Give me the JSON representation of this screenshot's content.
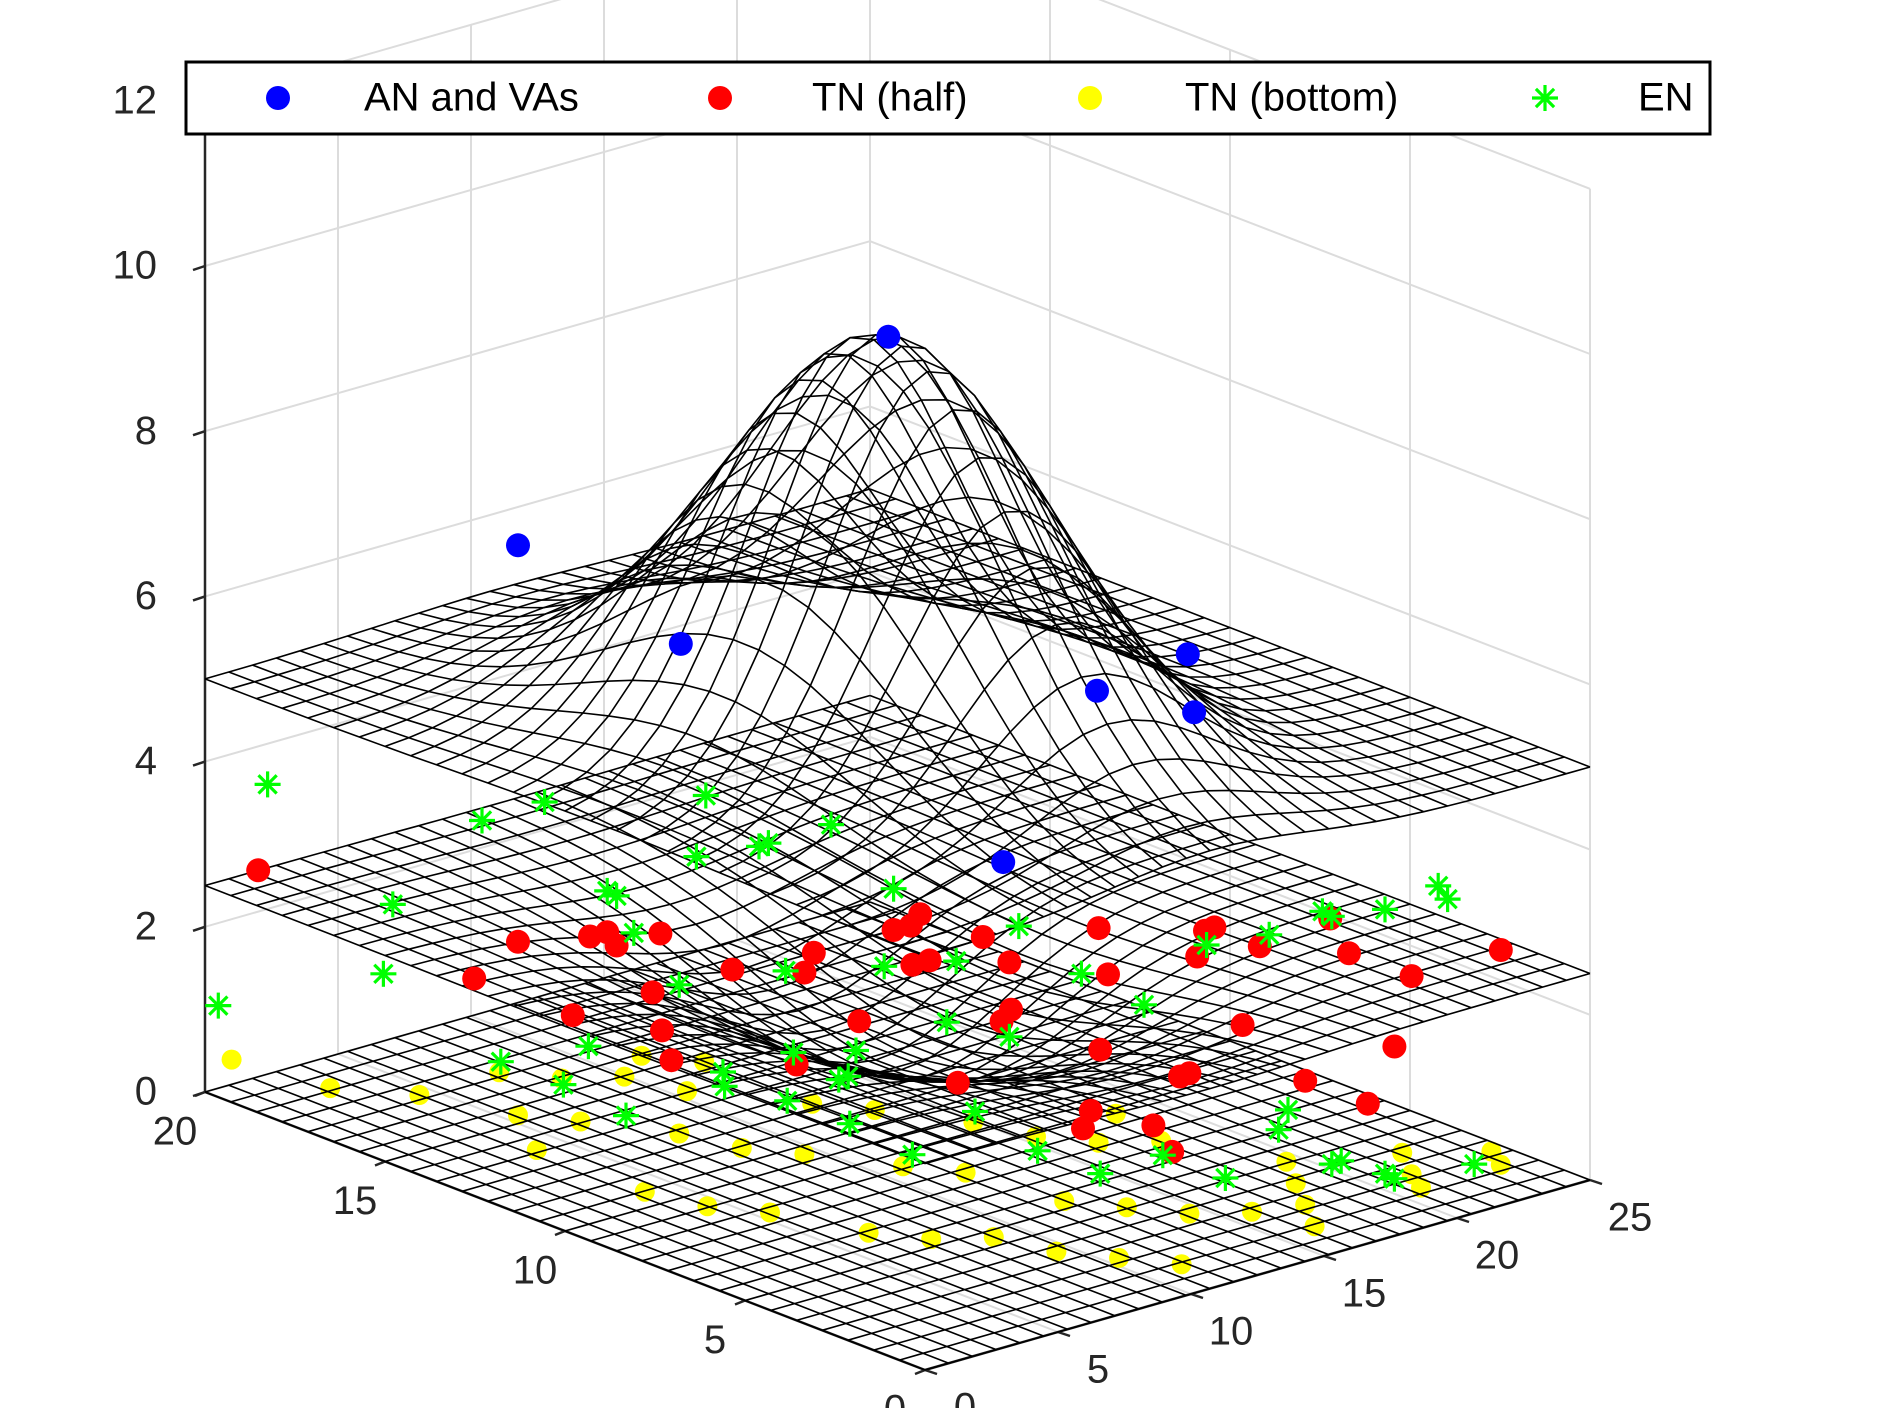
{
  "chart_data": {
    "type": "scatter3d-surface",
    "title": "",
    "colors": {
      "an": "#0000ff",
      "tn_half": "#ff0000",
      "tn_bottom": "#ffff00",
      "en": "#00ff00",
      "surface": "#000000",
      "grid": "#dcdcdc",
      "axis": "#262626"
    },
    "axes": {
      "x_range": [
        0,
        25
      ],
      "y_range": [
        0,
        20
      ],
      "z_range": [
        0,
        12
      ],
      "x_ticks": [
        "0",
        "5",
        "10",
        "15",
        "20",
        "25"
      ],
      "y_ticks": [
        "0",
        "5",
        "10",
        "15",
        "20"
      ],
      "z_ticks": [
        "0",
        "2",
        "4",
        "6",
        "8",
        "10",
        "12"
      ],
      "grid": true
    },
    "legend": {
      "location": "top",
      "entries": [
        {
          "label": "AN and VAs",
          "marker": "dot",
          "color": "#0000ff"
        },
        {
          "label": "TN (half)",
          "marker": "dot",
          "color": "#ff0000"
        },
        {
          "label": "TN (bottom)",
          "marker": "dot",
          "color": "#ffff00"
        },
        {
          "label": "EN",
          "marker": "star",
          "color": "#00ff00"
        }
      ]
    },
    "surfaces": [
      {
        "name": "top",
        "base": 5,
        "peak": 10,
        "center": [
          10.8,
          9
        ],
        "sigma": 3.8
      },
      {
        "name": "half",
        "base": 2.5,
        "peak": 1.2,
        "center": [
          10.8,
          9
        ],
        "sigma": 3.8
      },
      {
        "name": "bottom",
        "base": 0,
        "peak": 0,
        "center": [
          10.8,
          9
        ],
        "sigma": 3.8
      }
    ],
    "series": [
      {
        "name": "AN and VAs",
        "points": [
          [
            10.8,
            9,
            10
          ],
          [
            3,
            9,
            7
          ],
          [
            13.5,
            2.5,
            6.3
          ],
          [
            18,
            6,
            6
          ],
          [
            5,
            15,
            7
          ],
          [
            7,
            3,
            5
          ],
          [
            20,
            10,
            4.7
          ]
        ]
      },
      {
        "name": "TN (half)",
        "points": [
          [
            2,
            20,
            2.5
          ],
          [
            5,
            15,
            2.2
          ],
          [
            6,
            13,
            2.4
          ],
          [
            6,
            12,
            2.0
          ],
          [
            5,
            11,
            1.8
          ],
          [
            9,
            10,
            2.3
          ],
          [
            11,
            8,
            2.6
          ],
          [
            11,
            6,
            2.2
          ],
          [
            9,
            12,
            2.0
          ],
          [
            7,
            14,
            2.3
          ],
          [
            12,
            4,
            2.1
          ],
          [
            13,
            10,
            2.5
          ],
          [
            14,
            8,
            2.3
          ],
          [
            15,
            6,
            2.4
          ],
          [
            16,
            7,
            2.7
          ],
          [
            17,
            5,
            2.6
          ],
          [
            18,
            4,
            2.8
          ],
          [
            19,
            6,
            2.6
          ],
          [
            20,
            3,
            2.7
          ],
          [
            21,
            2,
            2.5
          ],
          [
            22,
            5,
            2.6
          ],
          [
            23,
            1,
            2.8
          ],
          [
            14,
            3,
            1.8
          ],
          [
            15,
            4,
            1.5
          ],
          [
            17,
            2,
            1.6
          ],
          [
            18,
            1,
            1.4
          ],
          [
            12,
            2,
            1.2
          ],
          [
            10,
            3,
            1.5
          ],
          [
            8,
            5,
            1.9
          ],
          [
            6,
            8,
            1.8
          ],
          [
            4,
            10,
            1.7
          ],
          [
            3,
            12,
            2.0
          ],
          [
            2,
            14,
            2.2
          ],
          [
            7,
            7,
            2.4
          ],
          [
            8,
            9,
            2.8
          ],
          [
            9,
            7,
            2.9
          ],
          [
            10,
            5,
            2.6
          ],
          [
            11,
            9,
            2.8
          ],
          [
            12,
            9,
            2.9
          ],
          [
            13,
            8,
            2.7
          ],
          [
            16,
            3,
            2.2
          ],
          [
            19,
            1,
            2.0
          ],
          [
            20,
            7,
            2.3
          ],
          [
            5,
            13,
            2.6
          ],
          [
            9,
            14,
            2.1
          ],
          [
            13,
            5,
            1.1
          ],
          [
            14,
            4,
            1.0
          ]
        ]
      },
      {
        "name": "TN (bottom)",
        "points": [
          [
            1,
            20,
            0.3
          ],
          [
            2,
            18,
            0.2
          ],
          [
            4,
            17,
            0.1
          ],
          [
            5,
            15,
            0.1
          ],
          [
            6,
            14,
            0.1
          ],
          [
            3,
            13,
            0.2
          ],
          [
            7,
            12,
            0.2
          ],
          [
            8,
            11,
            0.1
          ],
          [
            9,
            10,
            0.1
          ],
          [
            10,
            8,
            0.2
          ],
          [
            11,
            7,
            0.2
          ],
          [
            12,
            5,
            0.1
          ],
          [
            13,
            4,
            0.1
          ],
          [
            14,
            3,
            0.1
          ],
          [
            15,
            2,
            0.2
          ],
          [
            16,
            1,
            0.1
          ],
          [
            17,
            2,
            0.1
          ],
          [
            18,
            3,
            0.1
          ],
          [
            19,
            4,
            0.1
          ],
          [
            20,
            1,
            0.2
          ],
          [
            21,
            2,
            0.1
          ],
          [
            22,
            3,
            0.1
          ],
          [
            23,
            1,
            0.2
          ],
          [
            24,
            2,
            0.1
          ],
          [
            6,
            6,
            0.1
          ],
          [
            7,
            5,
            0.1
          ],
          [
            8,
            4,
            0.2
          ],
          [
            9,
            3,
            0.1
          ],
          [
            10,
            2,
            0.1
          ],
          [
            11,
            1,
            0.1
          ],
          [
            4,
            9,
            0.1
          ],
          [
            5,
            8,
            0.1
          ],
          [
            3,
            10,
            0.2
          ],
          [
            12,
            12,
            0.1
          ],
          [
            13,
            11,
            0.1
          ],
          [
            14,
            9,
            0.2
          ],
          [
            15,
            8,
            0.1
          ],
          [
            16,
            7,
            0.1
          ],
          [
            17,
            6,
            0.2
          ],
          [
            18,
            8,
            0.1
          ],
          [
            10,
            14,
            0.1
          ],
          [
            8,
            16,
            0.1
          ],
          [
            9,
            15,
            0.2
          ],
          [
            7,
            17,
            0.1
          ],
          [
            12,
            15,
            0.1
          ],
          [
            11,
            16,
            0.1
          ]
        ]
      },
      {
        "name": "EN",
        "points": [
          [
            0.5,
            20,
            1.0
          ],
          [
            1,
            19,
            3.8
          ],
          [
            3,
            17,
            2.5
          ],
          [
            5,
            16,
            3.5
          ],
          [
            4,
            18,
            1.4
          ],
          [
            6,
            15,
            3.8
          ],
          [
            7,
            14,
            2.8
          ],
          [
            8,
            12,
            4.2
          ],
          [
            9,
            11,
            3.7
          ],
          [
            10,
            10,
            4.0
          ],
          [
            11,
            9,
            3.3
          ],
          [
            12,
            8,
            2.5
          ],
          [
            13,
            7,
            3.0
          ],
          [
            14,
            6,
            2.5
          ],
          [
            15,
            5,
            2.2
          ],
          [
            16,
            4,
            3.0
          ],
          [
            17,
            3,
            3.2
          ],
          [
            18,
            2,
            3.5
          ],
          [
            19,
            3,
            3.3
          ],
          [
            20,
            2,
            3.4
          ],
          [
            21,
            1,
            3.6
          ],
          [
            22,
            2,
            3.5
          ],
          [
            6,
            10,
            1.2
          ],
          [
            7,
            9,
            1.1
          ],
          [
            8,
            8,
            0.9
          ],
          [
            9,
            7,
            0.6
          ],
          [
            10,
            6,
            1.2
          ],
          [
            11,
            5,
            0.8
          ],
          [
            12,
            4,
            0.6
          ],
          [
            13,
            3,
            0.9
          ],
          [
            14,
            2,
            0.7
          ],
          [
            15,
            1,
            1.6
          ],
          [
            16,
            2,
            1.1
          ],
          [
            17,
            1,
            0.8
          ],
          [
            18,
            2,
            0.5
          ],
          [
            19,
            1,
            0.4
          ],
          [
            20,
            2,
            0.2
          ],
          [
            22,
            1,
            0.3
          ],
          [
            5,
            12,
            0.6
          ],
          [
            4,
            13,
            0.9
          ],
          [
            3,
            14,
            1.1
          ],
          [
            10,
            13,
            0.5
          ],
          [
            12,
            11,
            0.6
          ],
          [
            13,
            12,
            0.3
          ],
          [
            14,
            14,
            0.2
          ],
          [
            15,
            13,
            0.3
          ],
          [
            9,
            16,
            0.4
          ],
          [
            8,
            14,
            2.2
          ],
          [
            7,
            12,
            2.0
          ],
          [
            11,
            12,
            1.8
          ],
          [
            12,
            10,
            2.1
          ],
          [
            13,
            9,
            1.5
          ],
          [
            14,
            8,
            1.4
          ],
          [
            6,
            13,
            3.0
          ],
          [
            9,
            13,
            3.2
          ],
          [
            10,
            12,
            3.4
          ]
        ]
      }
    ]
  }
}
